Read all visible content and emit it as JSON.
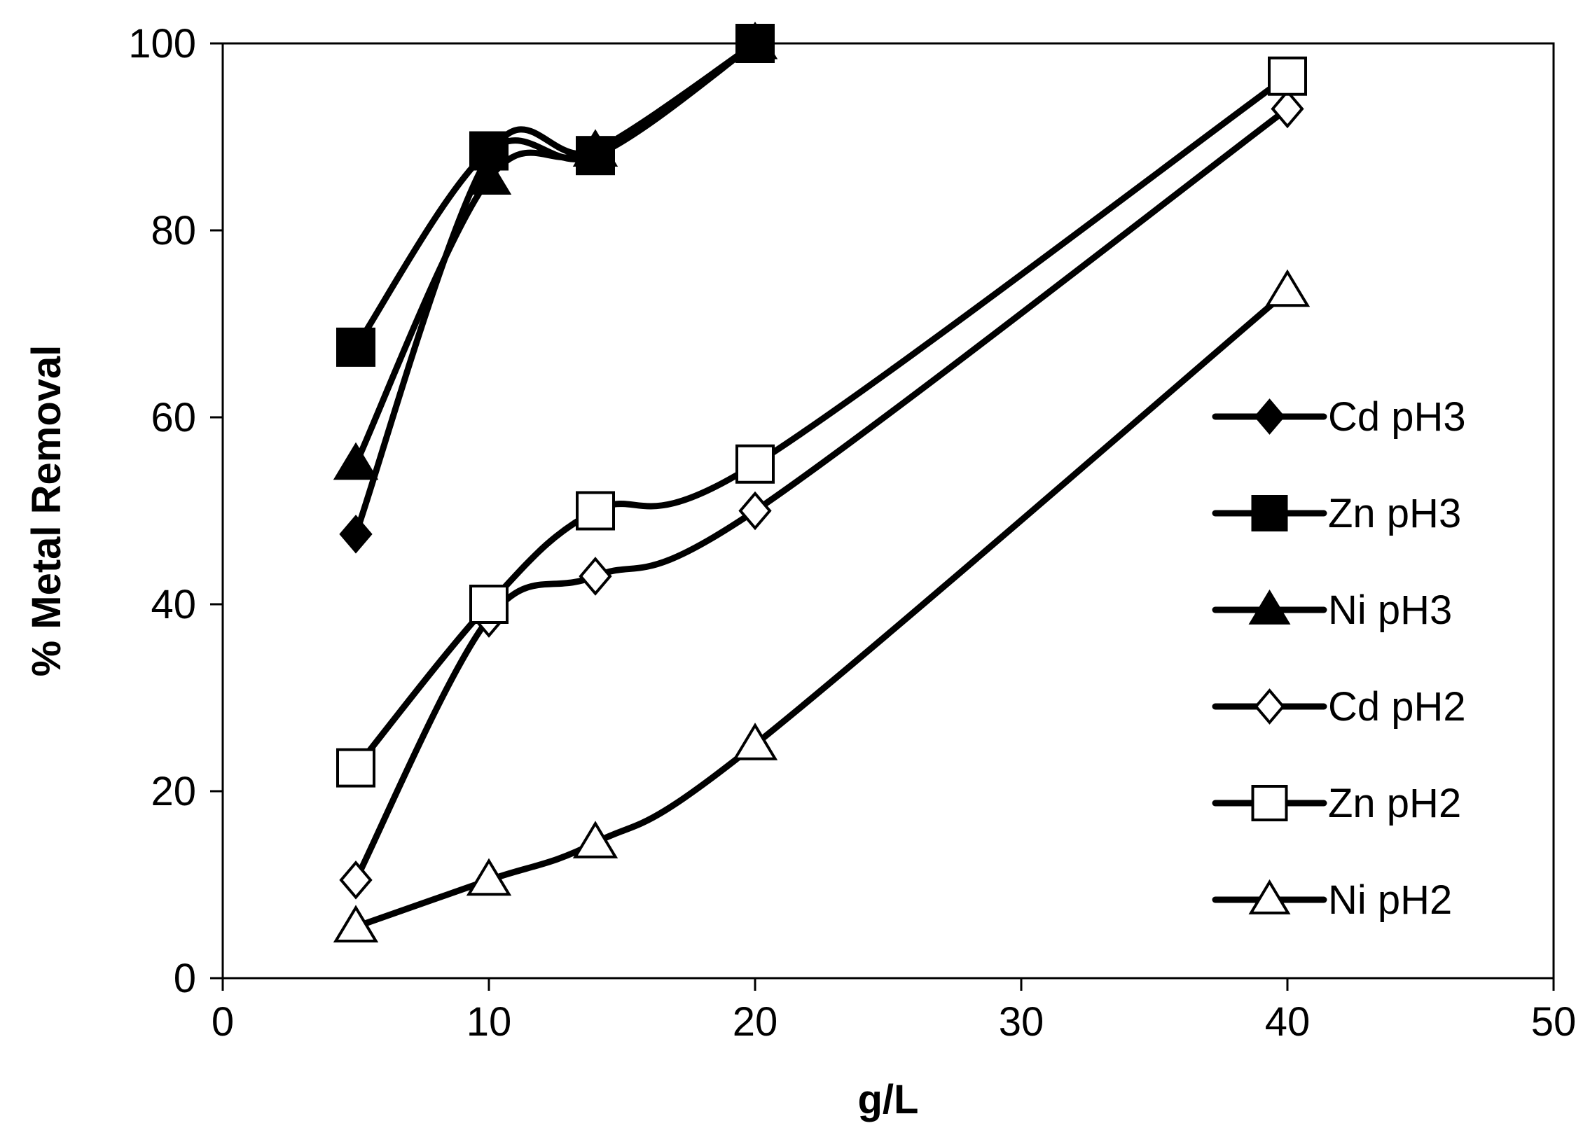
{
  "chart_data": {
    "type": "line",
    "xlabel": "g/L",
    "ylabel": "% Metal Removal",
    "xlim": [
      0,
      50
    ],
    "ylim": [
      0,
      100
    ],
    "x_ticks": [
      0,
      10,
      20,
      30,
      40,
      50
    ],
    "y_ticks": [
      0,
      20,
      40,
      60,
      80,
      100
    ],
    "grid": false,
    "legend_position": "right",
    "line_color": "#000000",
    "x": [
      5,
      10,
      14,
      20,
      40
    ],
    "series": [
      {
        "name": "Cd pH3",
        "marker": "diamond-filled",
        "points": [
          [
            5,
            47.5
          ],
          [
            10,
            88
          ],
          [
            14,
            88.5
          ],
          [
            20,
            100
          ]
        ]
      },
      {
        "name": "Zn pH3",
        "marker": "square-filled",
        "points": [
          [
            5,
            67.5
          ],
          [
            10,
            88.5
          ],
          [
            14,
            88
          ],
          [
            20,
            100
          ]
        ]
      },
      {
        "name": "Ni pH3",
        "marker": "triangle-filled",
        "points": [
          [
            5,
            55
          ],
          [
            10,
            85.5
          ],
          [
            14,
            88.5
          ],
          [
            20,
            100
          ]
        ]
      },
      {
        "name": "Cd pH2",
        "marker": "diamond-open",
        "points": [
          [
            5,
            10.5
          ],
          [
            10,
            38.5
          ],
          [
            14,
            43
          ],
          [
            20,
            50
          ],
          [
            40,
            93
          ]
        ]
      },
      {
        "name": "Zn pH2",
        "marker": "square-open",
        "points": [
          [
            5,
            22.5
          ],
          [
            10,
            40
          ],
          [
            14,
            50
          ],
          [
            20,
            55
          ],
          [
            40,
            96.5
          ]
        ]
      },
      {
        "name": "Ni pH2",
        "marker": "triangle-open",
        "points": [
          [
            5,
            5.5
          ],
          [
            10,
            10.5
          ],
          [
            14,
            14.5
          ],
          [
            20,
            25
          ],
          [
            40,
            73.5
          ]
        ]
      }
    ]
  }
}
